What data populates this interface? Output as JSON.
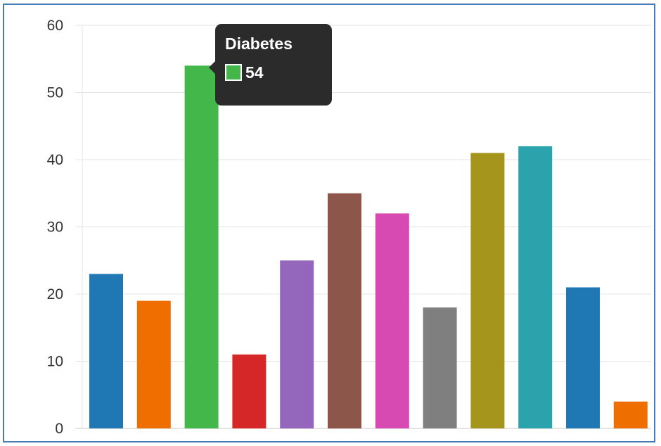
{
  "chart_data": {
    "type": "bar",
    "ylim": [
      0,
      60
    ],
    "yticks": [
      "0",
      "10",
      "20",
      "30",
      "40",
      "50",
      "60"
    ],
    "grid": true,
    "values": [
      23,
      19,
      54,
      11,
      25,
      35,
      32,
      18,
      41,
      42,
      21,
      4
    ],
    "colors": [
      "#1f77b4",
      "#ee6f00",
      "#44b74a",
      "#d62728",
      "#9467bd",
      "#8c564b",
      "#d64ab2",
      "#7f7f7f",
      "#a6951c",
      "#2aa3ad",
      "#1f77b4",
      "#ee6f00"
    ]
  },
  "tooltip": {
    "title": "Diabetes",
    "value": "54",
    "color": "#44b74a"
  }
}
